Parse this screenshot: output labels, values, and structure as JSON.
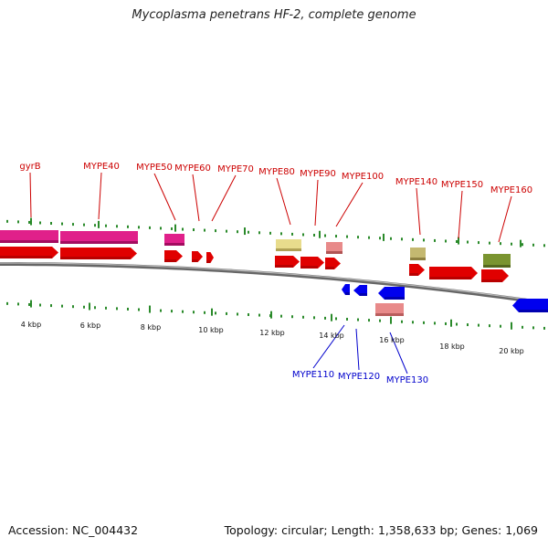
{
  "title": "Mycoplasma penetrans HF-2, complete genome",
  "footer": {
    "accession": "Accession: NC_004432",
    "stats": "Topology: circular; Length: 1,358,633 bp; Genes: 1,069"
  },
  "colors": {
    "forward_label": "#cc0000",
    "reverse_label": "#0000cc",
    "cds_forward": "#e00000",
    "cds_reverse": "#0000ee",
    "tick": "#2a8a2a",
    "backbone": "#888888",
    "magenta": "#e0208a",
    "pink": "#e88a8a",
    "khaki": "#e8dc8c",
    "olive_light": "#c4b870",
    "olive": "#7a9430"
  },
  "scale_labels": [
    "4 kbp",
    "6 kbp",
    "8 kbp",
    "10 kbp",
    "12 kbp",
    "14 kbp",
    "16 kbp",
    "18 kbp",
    "20 kbp"
  ],
  "forward_gene_labels": [
    "gyrB",
    "MYPE40",
    "MYPE50",
    "MYPE60",
    "MYPE70",
    "MYPE80",
    "MYPE90",
    "MYPE100",
    "MYPE140",
    "MYPE150",
    "MYPE160"
  ],
  "reverse_gene_labels": [
    "MYPE110",
    "MYPE120",
    "MYPE130"
  ]
}
